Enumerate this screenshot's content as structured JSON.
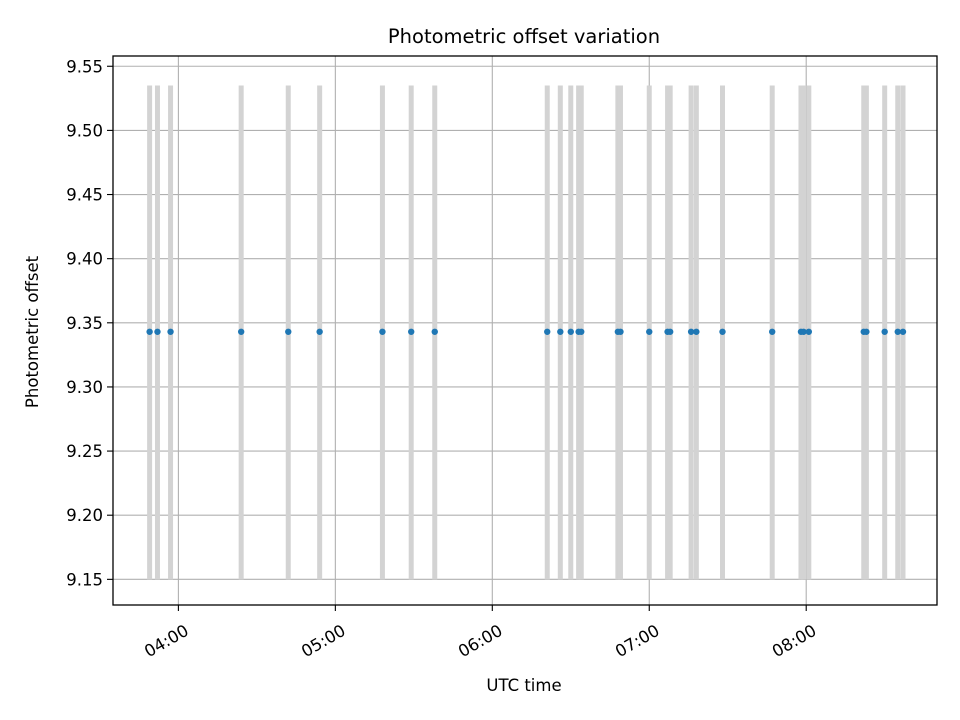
{
  "chart_data": {
    "type": "scatter",
    "title": "Photometric offset variation",
    "xlabel": "UTC time",
    "ylabel": "Photometric offset",
    "x_unit": "UTC time (HH:MM)",
    "xlim": [
      "03:35",
      "08:50"
    ],
    "ylim": [
      9.13,
      9.558
    ],
    "x_ticks": [
      "04:00",
      "05:00",
      "06:00",
      "07:00",
      "08:00"
    ],
    "y_ticks": [
      "9.15",
      "9.20",
      "9.25",
      "9.30",
      "9.35",
      "9.40",
      "9.45",
      "9.50",
      "9.55"
    ],
    "grid": true,
    "error_bar_range": [
      9.15,
      9.535
    ],
    "series": [
      {
        "y_value": 9.343,
        "color": "#1f77b4",
        "errorbar_color": "#d3d3d3",
        "x": [
          "03:49",
          "03:52",
          "03:57",
          "04:24",
          "04:42",
          "04:54",
          "05:18",
          "05:29",
          "05:38",
          "06:21",
          "06:26",
          "06:30",
          "06:33",
          "06:34",
          "06:48",
          "06:49",
          "07:00",
          "07:07",
          "07:08",
          "07:16",
          "07:18",
          "07:28",
          "07:47",
          "07:58",
          "07:59",
          "08:01",
          "08:22",
          "08:23",
          "08:30",
          "08:35",
          "08:37"
        ]
      }
    ]
  }
}
